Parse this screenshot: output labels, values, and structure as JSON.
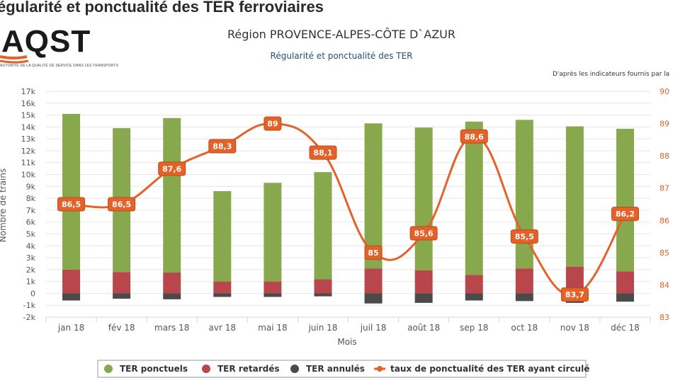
{
  "page": {
    "header": "égularité et ponctualité des TER ferroviaires",
    "logo": {
      "text": "AQST",
      "tagline": "AUTORITÉ DE LA QUALITÉ DE SERVICE DANS LES TRANSPORTS"
    }
  },
  "chart_data": {
    "type": "bar",
    "title": "Région PROVENCE-ALPES-CÔTE D`AZUR",
    "subtitle": "Régularité et ponctualité des TER",
    "credit": "D'après les indicateurs fournis par la",
    "xlabel": "Mois",
    "ylabel": "Nombre de trains",
    "categories": [
      "janv 18",
      "fév 18",
      "mars 18",
      "avr 18",
      "mai 18",
      "juin 18",
      "juil 18",
      "août 18",
      "sep 18",
      "oct 18",
      "nov 18",
      "déc 18"
    ],
    "category_labels_visible": [
      "jan 18",
      "fév 18",
      "mars 18",
      "avr 18",
      "mai 18",
      "juin 18",
      "juil 18",
      "août 18",
      "sep 18",
      "oct 18",
      "nov 18",
      "déc 18"
    ],
    "ylim": [
      -2000,
      17000
    ],
    "y_ticks": [
      -2000,
      -1000,
      0,
      1000,
      2000,
      3000,
      4000,
      5000,
      6000,
      7000,
      8000,
      9000,
      10000,
      11000,
      12000,
      13000,
      14000,
      15000,
      16000,
      17000
    ],
    "y_tick_labels": [
      "-2k",
      "-1k",
      "0",
      "1k",
      "2k",
      "3k",
      "4k",
      "5k",
      "6k",
      "7k",
      "8k",
      "9k",
      "10k",
      "11k",
      "12k",
      "13k",
      "14k",
      "15k",
      "16k",
      "17k"
    ],
    "y2lim": [
      83,
      90
    ],
    "y2_ticks": [
      83,
      84,
      85,
      86,
      87,
      88,
      89,
      90
    ],
    "grid": true,
    "legend_position": "bottom",
    "series": [
      {
        "name": "TER ponctuels",
        "kind": "bar",
        "color": "#87a84d",
        "values": [
          13100,
          12100,
          13000,
          7600,
          8300,
          9000,
          12200,
          12000,
          12900,
          12500,
          11800,
          12000
        ]
      },
      {
        "name": "TER retardés",
        "kind": "bar",
        "color": "#b7474a",
        "values": [
          2000,
          1800,
          1750,
          1000,
          1000,
          1200,
          2100,
          1950,
          1550,
          2100,
          2250,
          1850
        ]
      },
      {
        "name": "TER annulés",
        "kind": "bar",
        "color": "#4a4a4a",
        "values": [
          -600,
          -450,
          -500,
          -300,
          -300,
          -250,
          -850,
          -800,
          -600,
          -650,
          -800,
          -700
        ]
      },
      {
        "name": "taux de ponctualité des TER ayant circulé",
        "kind": "line",
        "color": "#e3622a",
        "axis": "right",
        "values": [
          86.5,
          86.5,
          87.6,
          88.3,
          89,
          88.1,
          85,
          85.6,
          88.6,
          85.5,
          83.7,
          86.2
        ]
      }
    ],
    "data_labels": [
      "86,5",
      "86,5",
      "87,6",
      "88,3",
      "89",
      "88,1",
      "85",
      "85,6",
      "88,6",
      "85,5",
      "83,7",
      "86,2"
    ]
  }
}
